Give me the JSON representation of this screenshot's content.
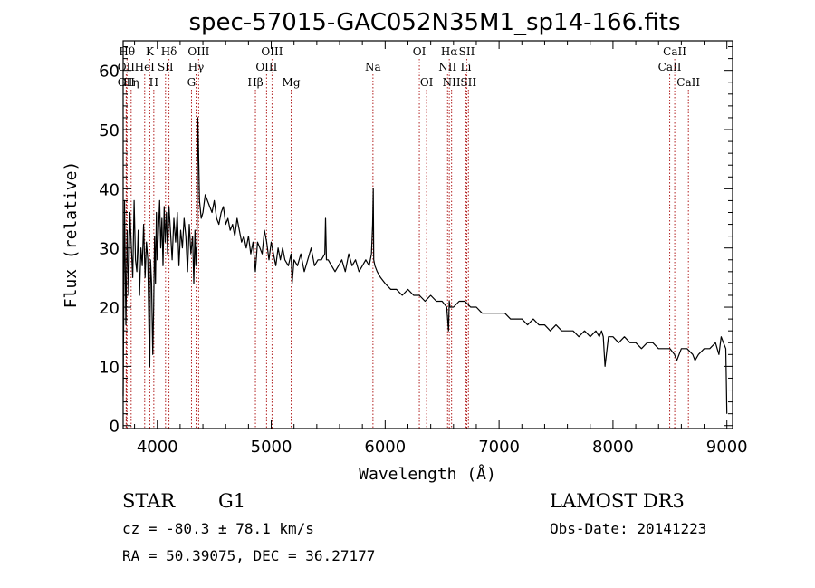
{
  "chart_data": {
    "type": "line",
    "title": "spec-57015-GAC052N35M1_sp14-166.fits",
    "xlabel": "Wavelength (Å)",
    "ylabel": "Flux (relative)",
    "xlim": [
      3700,
      9050
    ],
    "ylim": [
      -0.5,
      65
    ],
    "xticks": [
      4000,
      5000,
      6000,
      7000,
      8000,
      9000
    ],
    "yticks": [
      0,
      10,
      20,
      30,
      40,
      50,
      60
    ],
    "series": [
      {
        "name": "spectrum",
        "x": [
          3700,
          3712,
          3724,
          3736,
          3748,
          3760,
          3772,
          3784,
          3796,
          3808,
          3820,
          3832,
          3844,
          3856,
          3868,
          3880,
          3892,
          3904,
          3916,
          3928,
          3934,
          3940,
          3950,
          3960,
          3968,
          3976,
          3984,
          3992,
          4000,
          4010,
          4020,
          4030,
          4040,
          4050,
          4060,
          4070,
          4080,
          4090,
          4102,
          4115,
          4130,
          4145,
          4160,
          4175,
          4190,
          4205,
          4220,
          4235,
          4250,
          4265,
          4280,
          4295,
          4310,
          4320,
          4330,
          4338,
          4342,
          4348,
          4355,
          4362,
          4370,
          4385,
          4400,
          4420,
          4440,
          4460,
          4480,
          4500,
          4520,
          4540,
          4560,
          4580,
          4600,
          4620,
          4640,
          4660,
          4680,
          4700,
          4720,
          4740,
          4760,
          4780,
          4800,
          4820,
          4840,
          4861,
          4880,
          4900,
          4920,
          4940,
          4960,
          4980,
          5000,
          5020,
          5040,
          5060,
          5080,
          5100,
          5120,
          5150,
          5175,
          5183,
          5200,
          5230,
          5260,
          5290,
          5320,
          5350,
          5380,
          5410,
          5440,
          5470,
          5477,
          5485,
          5500,
          5530,
          5560,
          5590,
          5620,
          5650,
          5680,
          5710,
          5740,
          5770,
          5800,
          5830,
          5860,
          5880,
          5890,
          5896,
          5900,
          5910,
          5930,
          5960,
          6000,
          6050,
          6100,
          6150,
          6200,
          6250,
          6300,
          6350,
          6400,
          6450,
          6500,
          6540,
          6556,
          6563,
          6570,
          6600,
          6650,
          6700,
          6750,
          6800,
          6850,
          6900,
          6950,
          7000,
          7050,
          7100,
          7150,
          7200,
          7250,
          7300,
          7350,
          7400,
          7450,
          7500,
          7550,
          7600,
          7650,
          7700,
          7750,
          7800,
          7850,
          7880,
          7900,
          7915,
          7930,
          7960,
          8000,
          8050,
          8100,
          8150,
          8200,
          8250,
          8300,
          8350,
          8400,
          8450,
          8500,
          8540,
          8560,
          8600,
          8650,
          8700,
          8720,
          8750,
          8800,
          8850,
          8900,
          8930,
          8950,
          8970,
          8990,
          9000
        ],
        "values": [
          5,
          38,
          17,
          33,
          22,
          36,
          30,
          25,
          38,
          28,
          26,
          33,
          22,
          30,
          27,
          34,
          25,
          31,
          28,
          14,
          10,
          28,
          24,
          12,
          20,
          32,
          24,
          36,
          28,
          33,
          38,
          30,
          35,
          27,
          37,
          31,
          36,
          29,
          37,
          33,
          28,
          35,
          31,
          36,
          27,
          33,
          30,
          35,
          32,
          26,
          34,
          29,
          32,
          24,
          33,
          27,
          30,
          30,
          52,
          46,
          38,
          35,
          36,
          39,
          38,
          37,
          36,
          38,
          35,
          34,
          36,
          37,
          34,
          35,
          33,
          34,
          32,
          35,
          33,
          31,
          32,
          30,
          32,
          29,
          31,
          26,
          31,
          30,
          29,
          33,
          31,
          28,
          31,
          29,
          27,
          30,
          28,
          30,
          28,
          27,
          29,
          24,
          28,
          27,
          29,
          26,
          28,
          30,
          27,
          28,
          28,
          29,
          35,
          28,
          28,
          27,
          26,
          27,
          28,
          26,
          29,
          27,
          28,
          26,
          27,
          28,
          27,
          29,
          34,
          40,
          28,
          27,
          26,
          25,
          24,
          23,
          23,
          22,
          23,
          22,
          22,
          21,
          22,
          21,
          21,
          20,
          16,
          21,
          20,
          20,
          21,
          21,
          20,
          20,
          19,
          19,
          19,
          19,
          19,
          18,
          18,
          18,
          17,
          18,
          17,
          17,
          16,
          17,
          16,
          16,
          16,
          15,
          16,
          15,
          16,
          15,
          16,
          15,
          10,
          15,
          15,
          14,
          15,
          14,
          14,
          13,
          14,
          14,
          13,
          13,
          13,
          12,
          11,
          13,
          13,
          12,
          11,
          12,
          13,
          13,
          14,
          12,
          15,
          14,
          13,
          2
        ]
      }
    ],
    "line_markers": [
      {
        "wl": 3734,
        "label": "Hθ",
        "row": 1
      },
      {
        "wl": 3727,
        "label": "OII",
        "row": 2
      },
      {
        "wl": 3727,
        "label": "OII",
        "row": 3
      },
      {
        "wl": 3770,
        "label": "Hη",
        "row": 3
      },
      {
        "wl": 3889,
        "label": "HeI",
        "row": 2
      },
      {
        "wl": 3934,
        "label": "K",
        "row": 1
      },
      {
        "wl": 3969,
        "label": "H",
        "row": 3
      },
      {
        "wl": 4072,
        "label": "SII",
        "row": 2
      },
      {
        "wl": 4102,
        "label": "Hδ",
        "row": 1
      },
      {
        "wl": 4300,
        "label": "G",
        "row": 3
      },
      {
        "wl": 4340,
        "label": "Hγ",
        "row": 2
      },
      {
        "wl": 4363,
        "label": "OIII",
        "row": 1
      },
      {
        "wl": 4861,
        "label": "Hβ",
        "row": 3
      },
      {
        "wl": 4959,
        "label": "OIII",
        "row": 2
      },
      {
        "wl": 5007,
        "label": "OIII",
        "row": 1
      },
      {
        "wl": 5175,
        "label": "Mg",
        "row": 3
      },
      {
        "wl": 5893,
        "label": "Na",
        "row": 2
      },
      {
        "wl": 6300,
        "label": "OI",
        "row": 1
      },
      {
        "wl": 6364,
        "label": "OI",
        "row": 3
      },
      {
        "wl": 6548,
        "label": "NII",
        "row": 2
      },
      {
        "wl": 6563,
        "label": "Hα",
        "row": 1
      },
      {
        "wl": 6583,
        "label": "NII",
        "row": 3
      },
      {
        "wl": 6708,
        "label": "Li",
        "row": 2
      },
      {
        "wl": 6717,
        "label": "SII",
        "row": 1
      },
      {
        "wl": 6731,
        "label": "SII",
        "row": 3
      },
      {
        "wl": 8498,
        "label": "CaII",
        "row": 2
      },
      {
        "wl": 8542,
        "label": "CaII",
        "row": 1
      },
      {
        "wl": 8662,
        "label": "CaII",
        "row": 3
      }
    ]
  },
  "footer": {
    "object_type": "STAR",
    "subclass": "G1",
    "survey": "LAMOST DR3",
    "redshift": "cz = -80.3 ± 78.1 km/s",
    "obs_date": "Obs-Date: 20141223",
    "coords": "RA =  50.39075, DEC =  36.27177"
  },
  "colors": {
    "line_marker": "#b22222",
    "spectrum": "#000000"
  }
}
